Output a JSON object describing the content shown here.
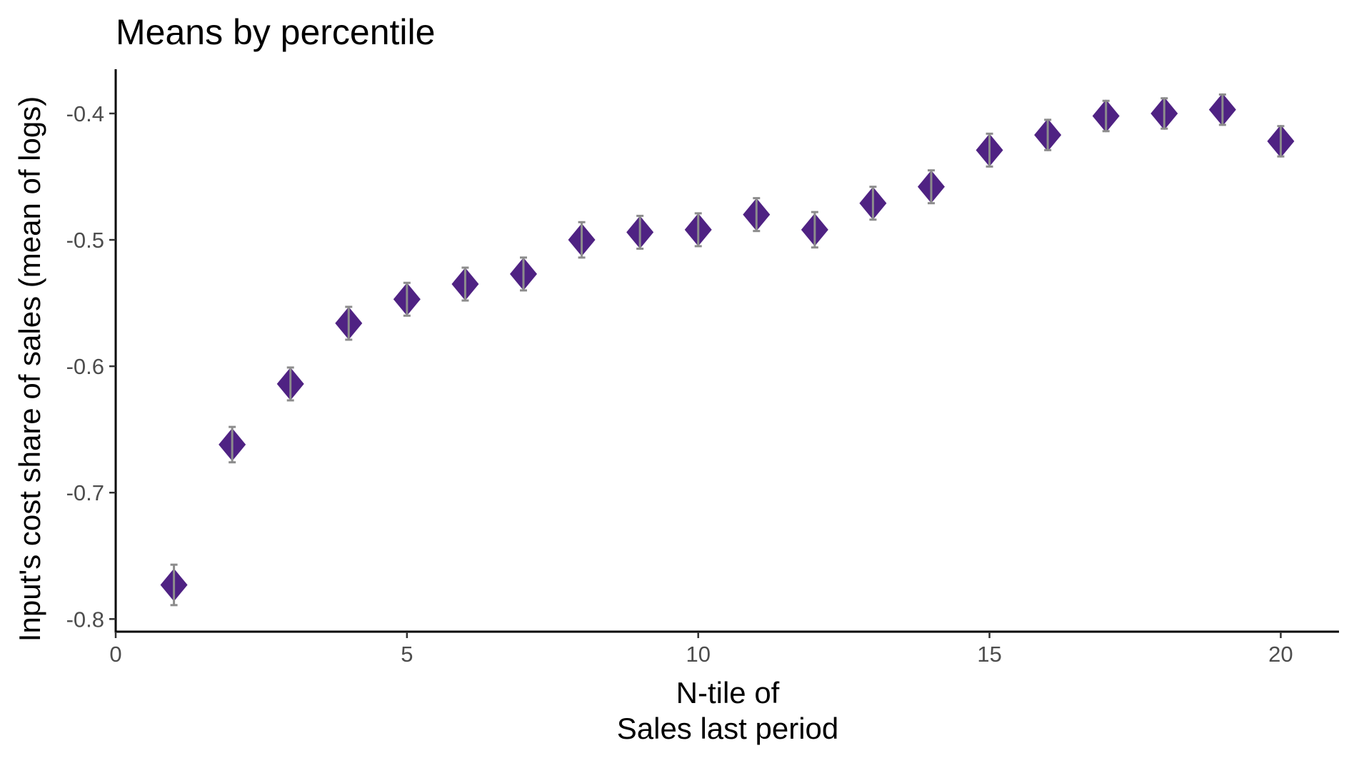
{
  "chart_data": {
    "type": "scatter",
    "title": "Means by percentile",
    "xlabel_lines": [
      "N-tile of",
      "Sales last period"
    ],
    "ylabel": "Input's cost share of sales (mean of logs)",
    "xlim": [
      0,
      21
    ],
    "ylim": [
      -0.81,
      -0.365
    ],
    "x_ticks": [
      0,
      5,
      10,
      15,
      20
    ],
    "x_tick_labels": [
      "0",
      "5",
      "10",
      "15",
      "20"
    ],
    "y_ticks": [
      -0.8,
      -0.7,
      -0.6,
      -0.5,
      -0.4
    ],
    "y_tick_labels": [
      "-0.8",
      "-0.7",
      "-0.6",
      "-0.5",
      "-0.4"
    ],
    "grid": false,
    "marker": "diamond",
    "marker_color": "#4f2283",
    "errorbar_color": "#8c8c8c",
    "axis_color": "#000000",
    "points": [
      {
        "x": 1,
        "y": -0.773,
        "lo": -0.789,
        "hi": -0.757
      },
      {
        "x": 2,
        "y": -0.662,
        "lo": -0.676,
        "hi": -0.648
      },
      {
        "x": 3,
        "y": -0.614,
        "lo": -0.627,
        "hi": -0.601
      },
      {
        "x": 4,
        "y": -0.566,
        "lo": -0.579,
        "hi": -0.553
      },
      {
        "x": 5,
        "y": -0.547,
        "lo": -0.56,
        "hi": -0.534
      },
      {
        "x": 6,
        "y": -0.535,
        "lo": -0.548,
        "hi": -0.522
      },
      {
        "x": 7,
        "y": -0.527,
        "lo": -0.54,
        "hi": -0.514
      },
      {
        "x": 8,
        "y": -0.5,
        "lo": -0.514,
        "hi": -0.486
      },
      {
        "x": 9,
        "y": -0.494,
        "lo": -0.507,
        "hi": -0.481
      },
      {
        "x": 10,
        "y": -0.492,
        "lo": -0.505,
        "hi": -0.479
      },
      {
        "x": 11,
        "y": -0.48,
        "lo": -0.493,
        "hi": -0.467
      },
      {
        "x": 12,
        "y": -0.492,
        "lo": -0.506,
        "hi": -0.478
      },
      {
        "x": 13,
        "y": -0.471,
        "lo": -0.484,
        "hi": -0.458
      },
      {
        "x": 14,
        "y": -0.458,
        "lo": -0.471,
        "hi": -0.445
      },
      {
        "x": 15,
        "y": -0.429,
        "lo": -0.442,
        "hi": -0.416
      },
      {
        "x": 16,
        "y": -0.417,
        "lo": -0.429,
        "hi": -0.405
      },
      {
        "x": 17,
        "y": -0.402,
        "lo": -0.414,
        "hi": -0.39
      },
      {
        "x": 18,
        "y": -0.4,
        "lo": -0.412,
        "hi": -0.388
      },
      {
        "x": 19,
        "y": -0.397,
        "lo": -0.409,
        "hi": -0.385
      },
      {
        "x": 20,
        "y": -0.422,
        "lo": -0.434,
        "hi": -0.41
      }
    ]
  }
}
